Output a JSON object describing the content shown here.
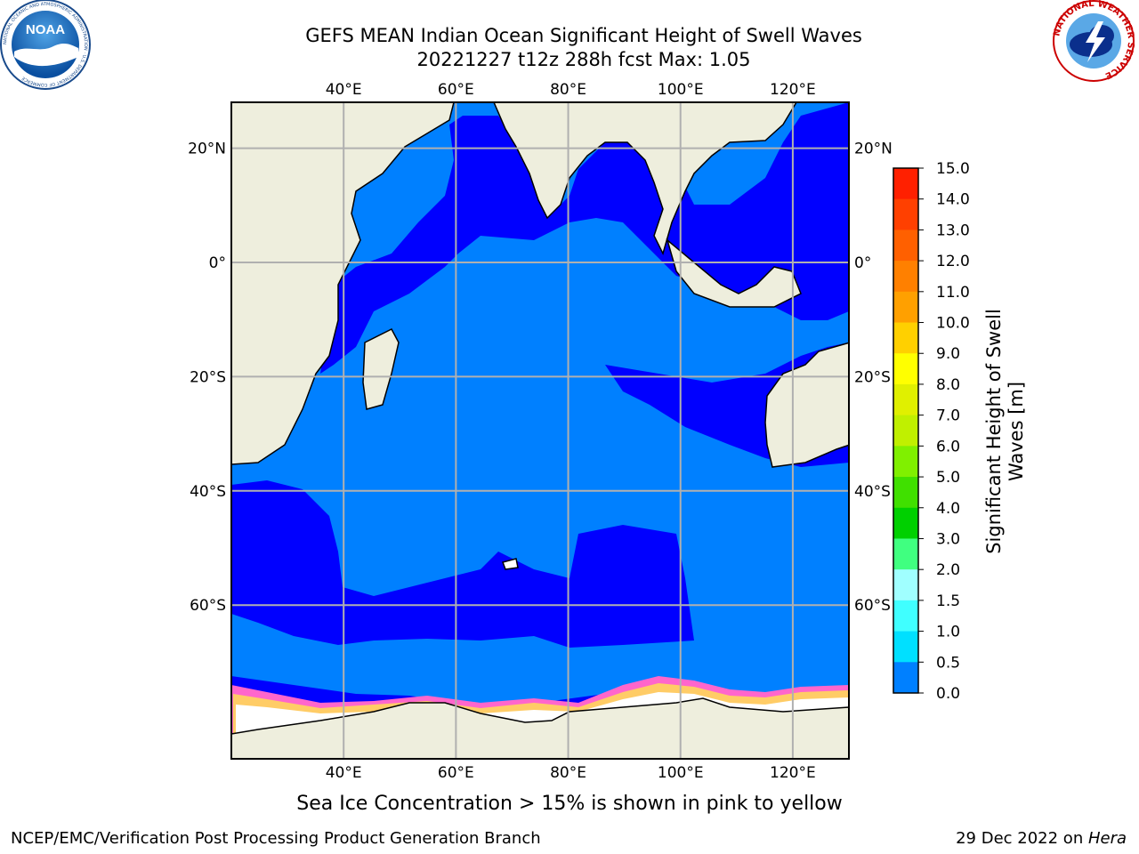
{
  "title": {
    "line1": "GEFS MEAN Indian Ocean Significant Height of Swell Waves",
    "line2": "20221227 t12z 288h fcst   Max: 1.05"
  },
  "caption": "Sea Ice Concentration > 15% is shown in pink to yellow",
  "footer": {
    "left": "NCEP/EMC/Verification Post Processing Product Generation Branch",
    "right_date": "29 Dec 2022 on ",
    "right_host": "Hera"
  },
  "logos": {
    "noaa": {
      "text": "NOAA",
      "ring_text": "NATIONAL OCEANIC AND ATMOSPHERIC ADMINISTRATION · U.S. DEPARTMENT OF COMMERCE"
    },
    "nws": {
      "ring_text": "NATIONAL WEATHER SERVICE"
    }
  },
  "map": {
    "lon_range": [
      20,
      130
    ],
    "lat_range": [
      -88,
      28
    ],
    "lon_ticks": [
      40,
      60,
      80,
      100,
      120
    ],
    "lon_labels": [
      "40°E",
      "60°E",
      "80°E",
      "100°E",
      "120°E"
    ],
    "lat_ticks": [
      20,
      0,
      -20,
      -40,
      -60
    ],
    "lat_labels": [
      "20°N",
      "0°",
      "20°S",
      "40°S",
      "60°S"
    ],
    "colors": {
      "land": "#eeeedd",
      "ocean_swell_0_0_5": "#0000ff",
      "ocean_swell_0_5_1_0": "#0080ff",
      "sea_ice": "#ffffff",
      "ice_edge_pink": "#ff66cc",
      "ice_edge_yellow": "#ffcc66",
      "grid": "#b0b0b0"
    }
  },
  "colorbar": {
    "label_line1": "Significant Height of Swell",
    "label_line2": "Waves [m]",
    "ticks": [
      "15.0",
      "14.0",
      "13.0",
      "12.0",
      "11.0",
      "10.0",
      "9.0",
      "8.0",
      "7.0",
      "6.0",
      "5.0",
      "4.0",
      "3.0",
      "2.0",
      "1.5",
      "1.0",
      "0.5",
      "0.0"
    ],
    "colors": [
      "#ff0000",
      "#ff2000",
      "#ff4000",
      "#ff6000",
      "#ff8000",
      "#ffa000",
      "#ffd000",
      "#ffff00",
      "#e0f000",
      "#c0f000",
      "#80f000",
      "#40e000",
      "#00d000",
      "#40ff80",
      "#a0ffff",
      "#40ffff",
      "#00e0ff",
      "#0080ff",
      "#0000ff"
    ]
  }
}
